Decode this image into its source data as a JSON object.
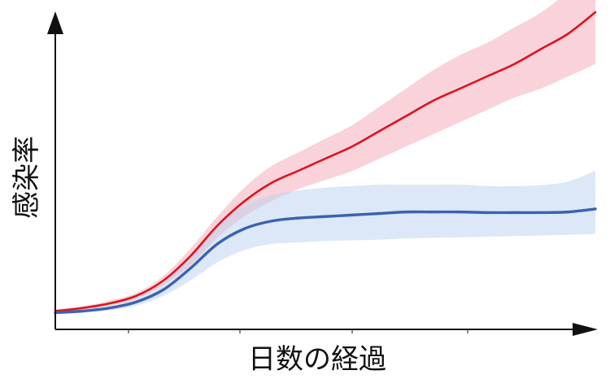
{
  "chart_data": {
    "type": "line",
    "xlabel": "日数の経過",
    "ylabel": "感染率",
    "xlim": [
      0,
      100
    ],
    "ylim": [
      0,
      100
    ],
    "grid": false,
    "x_ticks_labeled": false,
    "y_ticks_labeled": false,
    "x": [
      0,
      5,
      10,
      15,
      20,
      25,
      30,
      35,
      40,
      45,
      50,
      55,
      60,
      65,
      70,
      75,
      80,
      85,
      90,
      95,
      100
    ],
    "series": [
      {
        "color": "#e0101f",
        "band_color": "#f4a8b4",
        "values": [
          6,
          7,
          8.5,
          11,
          16,
          24,
          34,
          42,
          48,
          52,
          56,
          60,
          65,
          70,
          75,
          79,
          83,
          87,
          92,
          97,
          104
        ],
        "lower": [
          5.5,
          6.4,
          7.8,
          10,
          14.5,
          21,
          30,
          37,
          42,
          46,
          49,
          52,
          56,
          60,
          64,
          68,
          72,
          76,
          79,
          83,
          87
        ],
        "upper": [
          6.5,
          7.6,
          9.4,
          12,
          17.5,
          26.5,
          37,
          46.5,
          53.5,
          58,
          62.5,
          67,
          73,
          79,
          85,
          90,
          94,
          99,
          104,
          111,
          121
        ]
      },
      {
        "color": "#3a62b0",
        "band_color": "#b9d2ef",
        "values": [
          5.5,
          6,
          7,
          9,
          13,
          20,
          28,
          33,
          35.5,
          36.5,
          37,
          37.5,
          38,
          38.5,
          38.5,
          38.5,
          38.3,
          38.3,
          38.3,
          38.5,
          39.5
        ],
        "lower": [
          5,
          5.4,
          6.2,
          7.8,
          11,
          16,
          22,
          26,
          28,
          28.5,
          29,
          29.2,
          29.4,
          29.8,
          30,
          30.2,
          30.4,
          30.6,
          30.8,
          31,
          31.3
        ],
        "upper": [
          6,
          6.6,
          7.8,
          10.2,
          15,
          24,
          34,
          40.5,
          44,
          45.5,
          46.5,
          47,
          47.5,
          47.5,
          47.5,
          47.5,
          47,
          47,
          47.3,
          48.5,
          52
        ]
      }
    ]
  }
}
